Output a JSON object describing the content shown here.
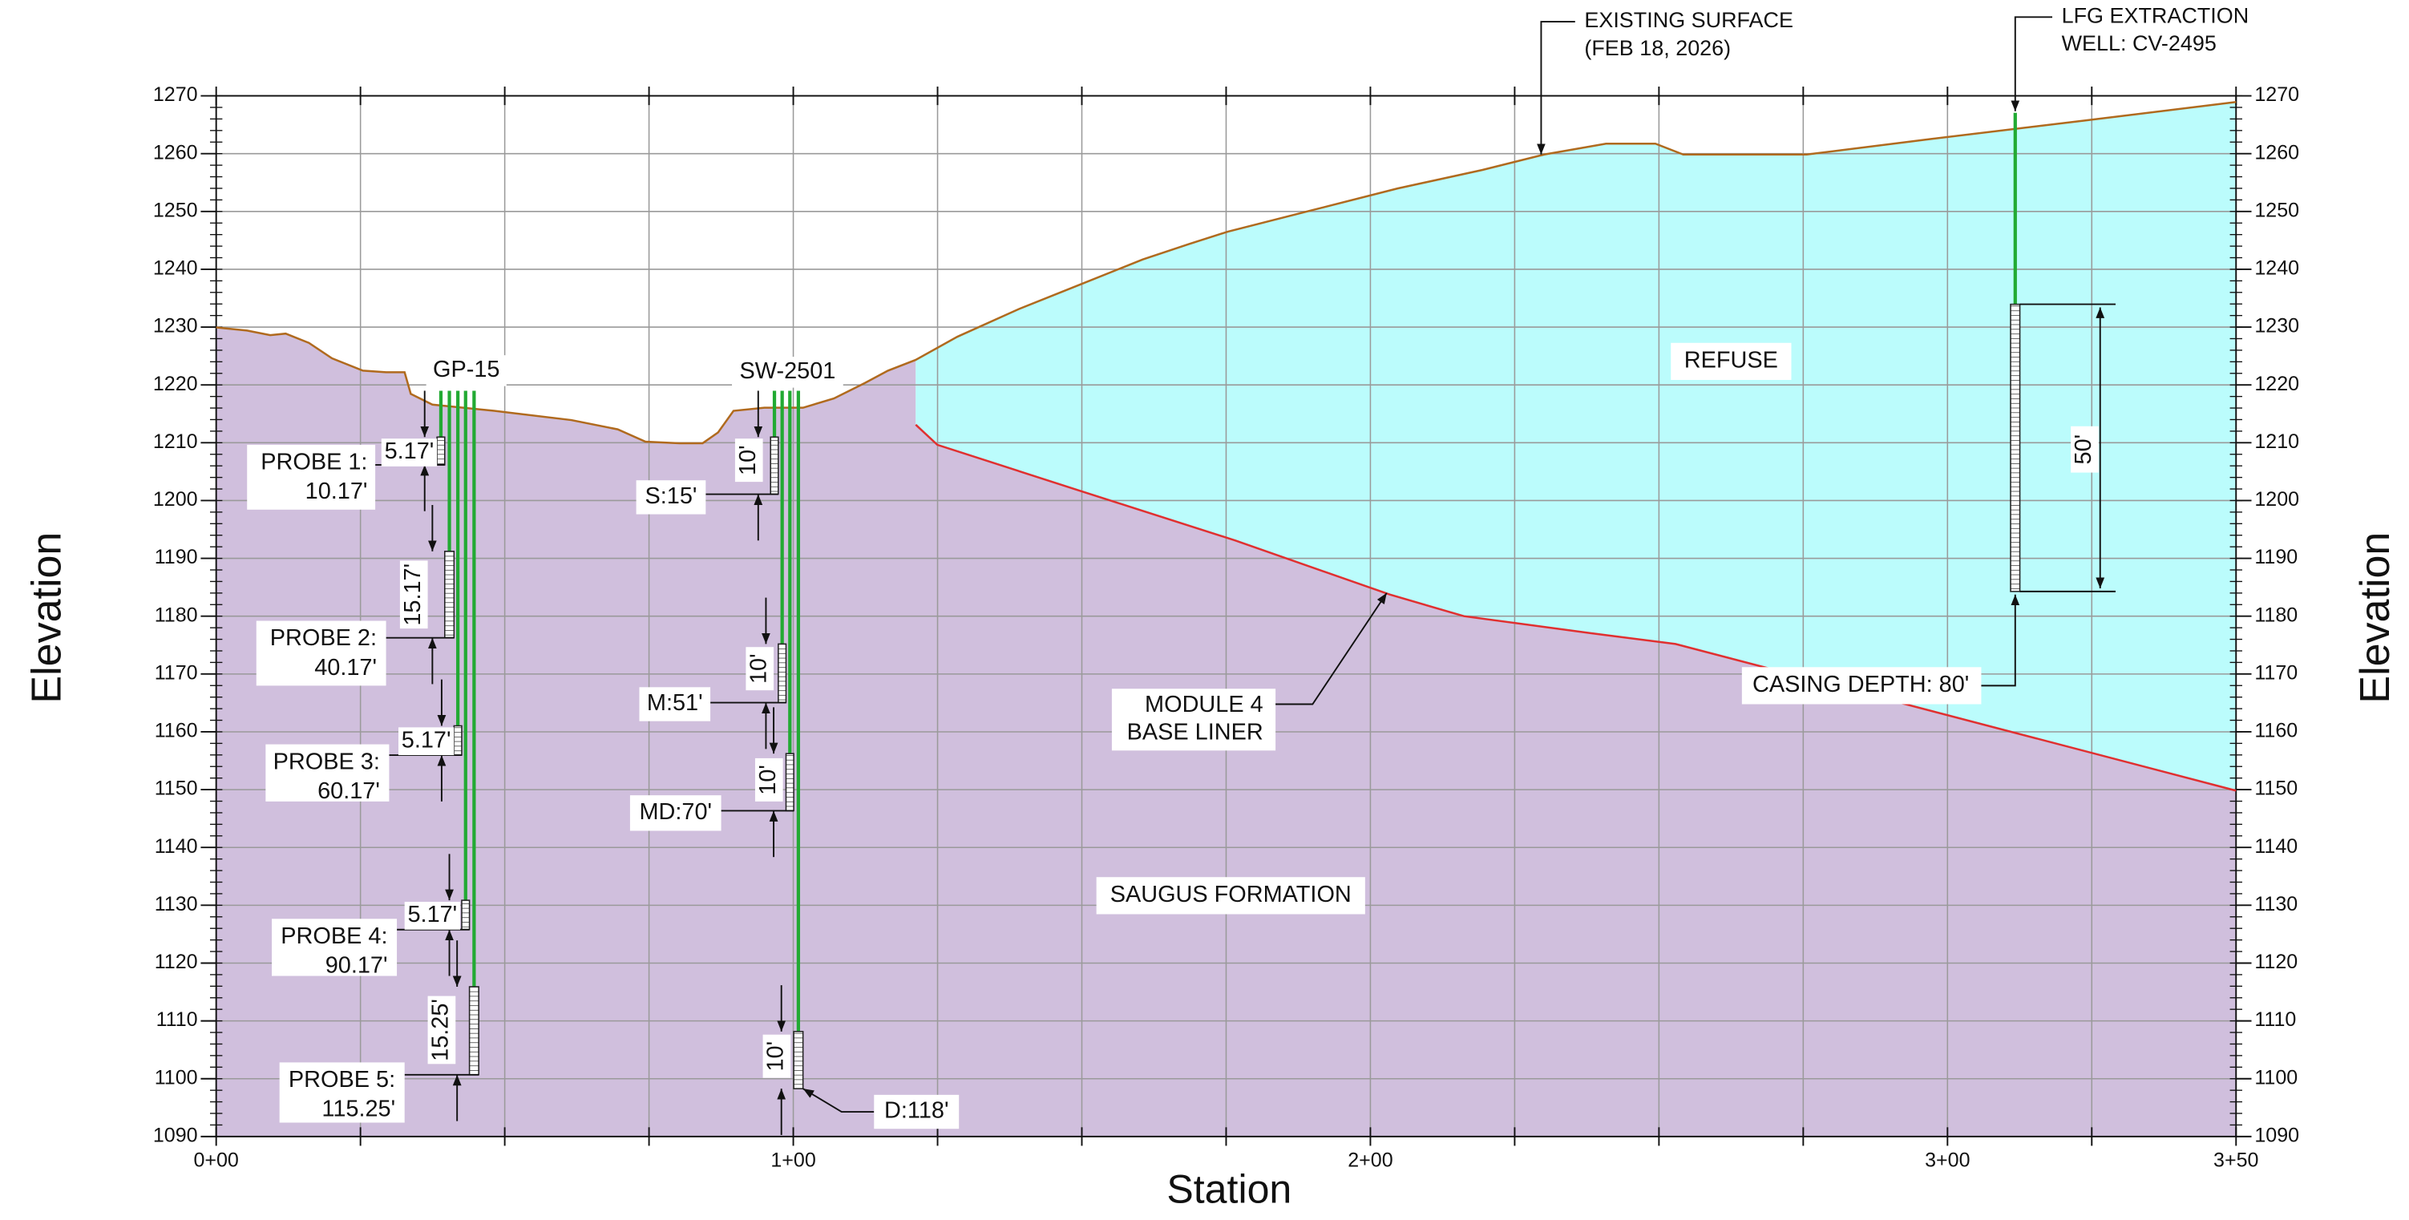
{
  "axes": {
    "y_label": "Elevation",
    "x_label": "Station",
    "y_ticks": [
      1090,
      1100,
      1110,
      1120,
      1130,
      1140,
      1150,
      1160,
      1170,
      1180,
      1190,
      1200,
      1210,
      1220,
      1230,
      1240,
      1250,
      1260,
      1270
    ],
    "x_ticks": [
      "0+00",
      "1+00",
      "2+00",
      "3+00",
      "3+50"
    ]
  },
  "zones": [
    "REFUSE",
    "SAUGUS FORMATION"
  ],
  "callouts": [
    [
      "EXISTING SURFACE",
      "(FEB 18, 2026)"
    ],
    [
      "LFG EXTRACTION",
      "WELL: CV-2495"
    ],
    [
      "MODULE 4",
      "BASE LINER"
    ],
    [
      "CASING DEPTH: 80'"
    ]
  ],
  "probe_sets": [
    {
      "name": "GP-15",
      "probes": [
        {
          "label": [
            "PROBE 1:",
            "10.17'"
          ],
          "screen": "5.17'"
        },
        {
          "label": [
            "PROBE 2:",
            "40.17'"
          ],
          "screen": "15.17'"
        },
        {
          "label": [
            "PROBE 3:",
            "60.17'"
          ],
          "screen": "5.17'"
        },
        {
          "label": [
            "PROBE 4:",
            "90.17'"
          ],
          "screen": "5.17'"
        },
        {
          "label": [
            "PROBE 5:",
            "115.25'"
          ],
          "screen": "15.25'"
        }
      ]
    },
    {
      "name": "SW-2501",
      "probes": [
        {
          "label": [
            "S:15'"
          ],
          "screen": "10'"
        },
        {
          "label": [
            "M:51'"
          ],
          "screen": "10'"
        },
        {
          "label": [
            "MD:70'"
          ],
          "screen": "10'"
        },
        {
          "label": [
            "D:118'"
          ],
          "screen": "10'"
        }
      ]
    }
  ],
  "well": {
    "screen": "50'"
  }
}
